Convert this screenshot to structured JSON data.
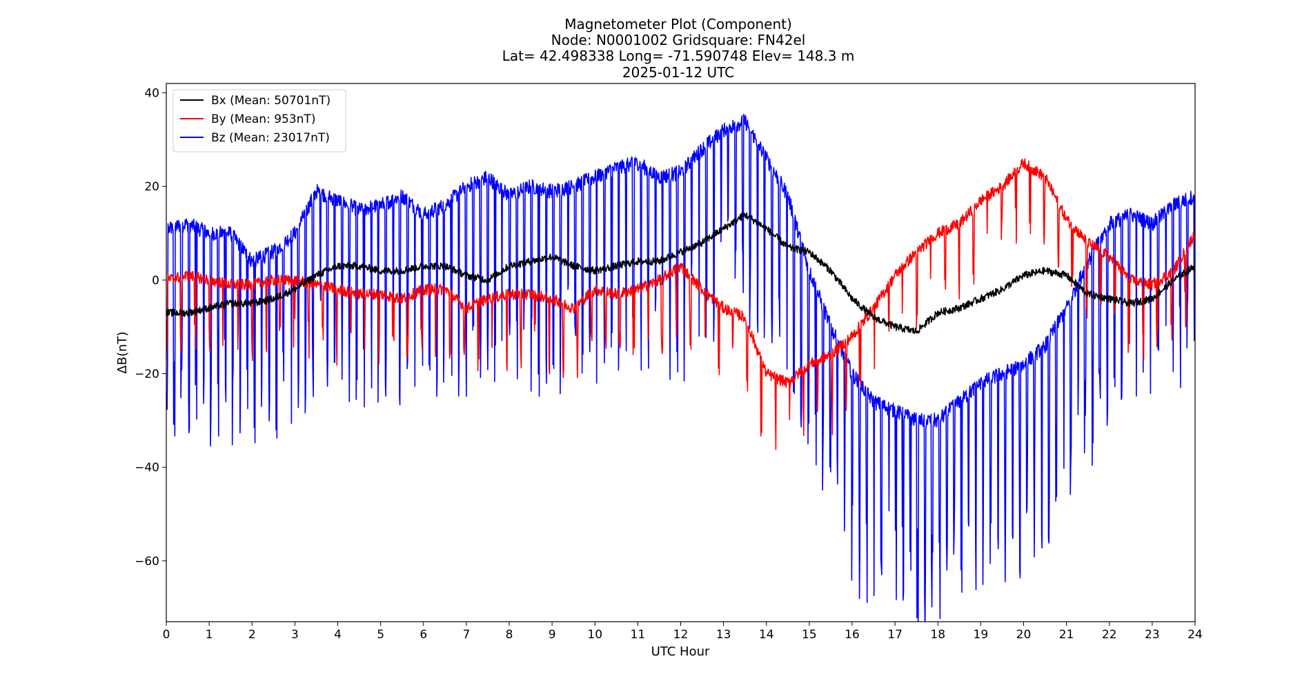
{
  "chart_data": {
    "type": "line",
    "title_lines": [
      "Magnetometer Plot (Component)",
      "Node:  N0001002     Gridsquare:  FN42el",
      "Lat= 42.498338    Long= -71.590748    Elev= 148.3 m",
      "2025-01-12  UTC"
    ],
    "xlabel": "UTC Hour",
    "ylabel": "ΔB(nT)",
    "xlim": [
      0,
      24
    ],
    "ylim": [
      -73,
      42
    ],
    "xticks": [
      0,
      1,
      2,
      3,
      4,
      5,
      6,
      7,
      8,
      9,
      10,
      11,
      12,
      13,
      14,
      15,
      16,
      17,
      18,
      19,
      20,
      21,
      22,
      23,
      24
    ],
    "xtick_labels": [
      "0",
      "1",
      "2",
      "3",
      "4",
      "5",
      "6",
      "7",
      "8",
      "9",
      "10",
      "11",
      "12",
      "13",
      "14",
      "15",
      "16",
      "17",
      "18",
      "19",
      "20",
      "21",
      "22",
      "23",
      "24"
    ],
    "yticks": [
      40,
      20,
      0,
      -20,
      -40,
      -60
    ],
    "ytick_labels": [
      "40",
      "20",
      "0",
      "−20",
      "−40",
      "−60"
    ],
    "legend_position": "upper-left",
    "grid": false,
    "series": [
      {
        "name": "Bx (Mean: 50701nT)",
        "color": "#000000",
        "noise": 0.8,
        "dips": null,
        "x": [
          0,
          0.5,
          1,
          1.5,
          2,
          2.5,
          3,
          3.5,
          4,
          4.5,
          5,
          5.5,
          6,
          6.5,
          7,
          7.5,
          8,
          8.5,
          9,
          9.5,
          10,
          10.5,
          11,
          11.5,
          12,
          12.5,
          13,
          13.5,
          14,
          14.5,
          15,
          15.5,
          16,
          16.5,
          17,
          17.5,
          18,
          18.5,
          19,
          19.5,
          20,
          20.5,
          21,
          21.5,
          22,
          22.5,
          23,
          23.5,
          24
        ],
        "y": [
          -7,
          -7,
          -6,
          -5,
          -5,
          -4,
          -2,
          1,
          3,
          3,
          2,
          2,
          3,
          3,
          1,
          0,
          3,
          4,
          5,
          3,
          2,
          3,
          4,
          4,
          6,
          8,
          11,
          14,
          11,
          7,
          6,
          2,
          -4,
          -8,
          -10,
          -11,
          -7,
          -6,
          -4,
          -2,
          1,
          2,
          1,
          -3,
          -4,
          -5,
          -4,
          0,
          3
        ]
      },
      {
        "name": "By (Mean: 953nT)",
        "color": "#ff0000",
        "noise": 1.2,
        "dips": {
          "every": 0.33,
          "depth": -13,
          "width": 0.03
        },
        "x": [
          0,
          0.5,
          1,
          1.5,
          2,
          2.5,
          3,
          3.5,
          4,
          4.5,
          5,
          5.5,
          6,
          6.5,
          7,
          7.5,
          8,
          8.5,
          9,
          9.5,
          10,
          10.5,
          11,
          11.5,
          12,
          12.5,
          13,
          13.5,
          14,
          14.5,
          15,
          15.5,
          16,
          16.5,
          17,
          17.5,
          18,
          18.5,
          19,
          19.5,
          20,
          20.5,
          21,
          21.5,
          22,
          22.5,
          23,
          23.5,
          24
        ],
        "y": [
          0,
          1,
          0,
          -1,
          -1,
          0,
          0,
          -1,
          -2,
          -3,
          -3,
          -4,
          -2,
          -2,
          -6,
          -4,
          -3,
          -3,
          -4,
          -6,
          -2,
          -3,
          -2,
          0,
          3,
          -2,
          -6,
          -8,
          -20,
          -22,
          -18,
          -16,
          -12,
          -6,
          1,
          6,
          10,
          12,
          17,
          20,
          25,
          22,
          13,
          8,
          5,
          0,
          -1,
          2,
          10
        ]
      },
      {
        "name": "Bz (Mean: 23017nT)",
        "color": "#0000ff",
        "noise": 1.6,
        "dips": {
          "every": 0.17,
          "depth": -36,
          "width": 0.035
        },
        "x": [
          0,
          0.5,
          1,
          1.5,
          2,
          2.5,
          3,
          3.5,
          4,
          4.5,
          5,
          5.5,
          6,
          6.5,
          7,
          7.5,
          8,
          8.5,
          9,
          9.5,
          10,
          10.5,
          11,
          11.5,
          12,
          12.5,
          13,
          13.5,
          14,
          14.5,
          15,
          15.5,
          16,
          16.5,
          17,
          17.5,
          18,
          18.5,
          19,
          19.5,
          20,
          20.5,
          21,
          21.5,
          22,
          22.5,
          23,
          23.5,
          24
        ],
        "y": [
          11,
          12,
          10,
          10,
          4,
          6,
          10,
          19,
          17,
          15,
          16,
          18,
          14,
          16,
          20,
          22,
          18,
          20,
          19,
          20,
          22,
          24,
          25,
          22,
          23,
          28,
          32,
          34,
          26,
          18,
          2,
          -10,
          -20,
          -26,
          -28,
          -30,
          -30,
          -26,
          -22,
          -20,
          -18,
          -14,
          -6,
          4,
          12,
          14,
          12,
          16,
          18
        ]
      }
    ]
  }
}
